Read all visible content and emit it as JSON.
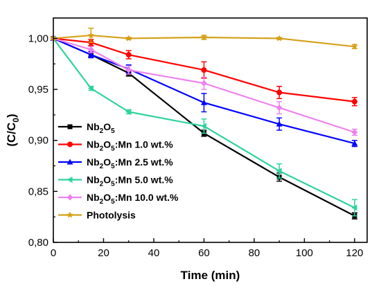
{
  "chart_data": {
    "type": "line",
    "title": "",
    "xlabel": "Time (min)",
    "ylabel": "(C/C0)",
    "xlim": [
      0,
      125
    ],
    "ylim": [
      0.8,
      1.02
    ],
    "x_ticks": [
      0,
      20,
      40,
      60,
      80,
      100,
      120
    ],
    "x_tick_labels": [
      "0",
      "20",
      "40",
      "60",
      "80",
      "100",
      "120"
    ],
    "y_ticks": [
      0.8,
      0.85,
      0.9,
      0.95,
      1.0
    ],
    "y_tick_labels": [
      "0,80",
      "0,85",
      "0,90",
      "0,95",
      "1,00"
    ],
    "grid": false,
    "legend_position": "bottom-left",
    "series": [
      {
        "name": "Nb2O5",
        "name_parts": [
          {
            "t": "Nb"
          },
          {
            "t": "2",
            "sub": true
          },
          {
            "t": "O"
          },
          {
            "t": "5",
            "sub": true
          }
        ],
        "color": "#000000",
        "marker": "square",
        "x": [
          0,
          15,
          30,
          60,
          90,
          120
        ],
        "y": [
          1.0,
          0.984,
          0.966,
          0.907,
          0.864,
          0.826
        ],
        "err": [
          0.001,
          0.002,
          0.003,
          0.003,
          0.004,
          0.003
        ]
      },
      {
        "name": "Nb2O5:Mn 1.0 wt.%",
        "name_parts": [
          {
            "t": "Nb"
          },
          {
            "t": "2",
            "sub": true
          },
          {
            "t": "O"
          },
          {
            "t": "5",
            "sub": true
          },
          {
            "t": ":Mn 1.0 wt.%"
          }
        ],
        "color": "#ff0000",
        "marker": "circle",
        "x": [
          0,
          15,
          30,
          60,
          90,
          120
        ],
        "y": [
          1.0,
          0.996,
          0.984,
          0.969,
          0.947,
          0.938
        ],
        "err": [
          0.001,
          0.003,
          0.004,
          0.008,
          0.006,
          0.004
        ]
      },
      {
        "name": "Nb2O5:Mn 2.5 wt.%",
        "name_parts": [
          {
            "t": "Nb"
          },
          {
            "t": "2",
            "sub": true
          },
          {
            "t": "O"
          },
          {
            "t": "5",
            "sub": true
          },
          {
            "t": ":Mn 2.5 wt.%"
          }
        ],
        "color": "#0000ff",
        "marker": "triangle-up",
        "x": [
          0,
          15,
          30,
          60,
          90,
          120
        ],
        "y": [
          1.0,
          0.984,
          0.97,
          0.937,
          0.916,
          0.897
        ],
        "err": [
          0.001,
          0.003,
          0.004,
          0.009,
          0.006,
          0.003
        ]
      },
      {
        "name": "Nb2O5:Mn 5.0 wt.%",
        "name_parts": [
          {
            "t": "Nb"
          },
          {
            "t": "2",
            "sub": true
          },
          {
            "t": "O"
          },
          {
            "t": "5",
            "sub": true
          },
          {
            "t": ":Mn 5.0 wt.%"
          }
        ],
        "color": "#2fd39a",
        "marker": "triangle-left",
        "x": [
          0,
          15,
          30,
          60,
          90,
          120
        ],
        "y": [
          1.0,
          0.951,
          0.928,
          0.914,
          0.87,
          0.834
        ],
        "err": [
          0.001,
          0.002,
          0.002,
          0.007,
          0.007,
          0.008
        ]
      },
      {
        "name": "Nb2O5:Mn 10.0 wt.%",
        "name_parts": [
          {
            "t": "Nb"
          },
          {
            "t": "2",
            "sub": true
          },
          {
            "t": "O"
          },
          {
            "t": "5",
            "sub": true
          },
          {
            "t": ":Mn 10.0 wt.%"
          }
        ],
        "color": "#ee82ee",
        "marker": "diamond",
        "x": [
          0,
          15,
          30,
          60,
          90,
          120
        ],
        "y": [
          1.0,
          0.989,
          0.969,
          0.956,
          0.932,
          0.908
        ],
        "err": [
          0.001,
          0.003,
          0.004,
          0.006,
          0.006,
          0.003
        ]
      },
      {
        "name": "Photolysis",
        "name_parts": [
          {
            "t": "Photolysis"
          }
        ],
        "color": "#d4a017",
        "marker": "star",
        "x": [
          0,
          15,
          30,
          60,
          90,
          120
        ],
        "y": [
          1.0,
          1.003,
          1.0,
          1.001,
          1.0,
          0.992
        ],
        "err": [
          0.001,
          0.007,
          0.001,
          0.002,
          0.001,
          0.002
        ]
      }
    ]
  }
}
